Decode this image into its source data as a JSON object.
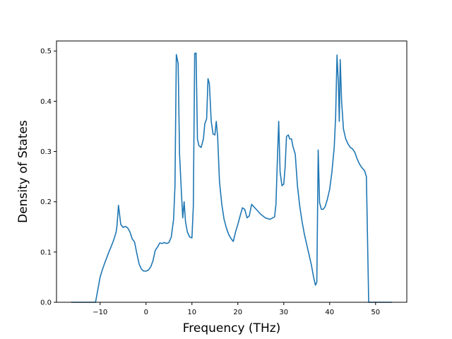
{
  "chart_data": {
    "type": "line",
    "title": "",
    "xlabel": "Frequency (THz)",
    "ylabel": "Density of States",
    "xlim": [
      -19.5,
      56.8
    ],
    "ylim": [
      0,
      0.52
    ],
    "xticks": [
      -10,
      0,
      10,
      20,
      30,
      40,
      50
    ],
    "xtick_labels": [
      "−10",
      "0",
      "10",
      "20",
      "30",
      "40",
      "50"
    ],
    "yticks": [
      0.0,
      0.1,
      0.2,
      0.3,
      0.4,
      0.5
    ],
    "ytick_labels": [
      "0.0",
      "0.1",
      "0.2",
      "0.3",
      "0.4",
      "0.5"
    ],
    "grid": false,
    "legend": "none",
    "color": "#1f77b4",
    "series": [
      {
        "x": [
          -16.3,
          -11.0,
          -10.5,
          -10.0,
          -9.5,
          -9.0,
          -8.5,
          -8.0,
          -7.5,
          -7.0,
          -6.5,
          -6.3,
          -6.0,
          -5.5,
          -5.0,
          -4.5,
          -4.0,
          -3.5,
          -3.0,
          -2.5,
          -2.0,
          -1.5,
          -1.0,
          -0.5,
          0.0,
          0.5,
          1.0,
          1.5,
          2.0,
          2.5,
          3.0,
          3.5,
          4.0,
          4.5,
          5.0,
          5.5,
          6.0,
          6.3,
          6.6,
          7.0,
          7.3,
          7.7,
          8.0,
          8.3,
          8.6,
          9.0,
          9.5,
          10.0,
          10.3,
          10.6,
          10.9,
          11.2,
          11.5,
          12.0,
          12.5,
          12.8,
          13.2,
          13.5,
          13.8,
          14.2,
          14.6,
          15.0,
          15.3,
          15.6,
          16.0,
          16.5,
          17.0,
          17.5,
          18.0,
          18.5,
          19.0,
          19.5,
          20.0,
          20.5,
          21.0,
          21.5,
          22.0,
          22.5,
          23.0,
          23.5,
          24.0,
          25.0,
          26.0,
          27.0,
          28.0,
          28.3,
          28.6,
          28.9,
          29.2,
          29.6,
          30.0,
          30.3,
          30.6,
          31.0,
          31.3,
          31.7,
          32.0,
          32.5,
          33.0,
          33.5,
          34.0,
          34.5,
          35.0,
          35.5,
          36.0,
          36.5,
          36.9,
          37.2,
          37.5,
          37.8,
          38.2,
          38.6,
          39.0,
          39.5,
          40.0,
          40.5,
          41.0,
          41.3,
          41.6,
          41.9,
          42.1,
          42.3,
          42.6,
          43.0,
          43.5,
          44.0,
          44.5,
          45.0,
          45.5,
          46.0,
          46.5,
          47.0,
          47.3,
          47.6,
          48.0,
          48.5,
          53.6
        ],
        "y": [
          0.0,
          0.0,
          0.025,
          0.05,
          0.065,
          0.078,
          0.09,
          0.102,
          0.113,
          0.125,
          0.14,
          0.155,
          0.193,
          0.155,
          0.149,
          0.151,
          0.148,
          0.14,
          0.126,
          0.12,
          0.097,
          0.076,
          0.066,
          0.062,
          0.062,
          0.064,
          0.07,
          0.082,
          0.103,
          0.11,
          0.118,
          0.117,
          0.119,
          0.117,
          0.119,
          0.13,
          0.165,
          0.23,
          0.493,
          0.475,
          0.295,
          0.22,
          0.168,
          0.2,
          0.16,
          0.14,
          0.13,
          0.128,
          0.19,
          0.495,
          0.496,
          0.325,
          0.312,
          0.308,
          0.325,
          0.355,
          0.365,
          0.445,
          0.435,
          0.36,
          0.335,
          0.333,
          0.36,
          0.33,
          0.24,
          0.195,
          0.165,
          0.148,
          0.135,
          0.127,
          0.121,
          0.14,
          0.155,
          0.172,
          0.188,
          0.185,
          0.168,
          0.172,
          0.195,
          0.19,
          0.185,
          0.175,
          0.168,
          0.165,
          0.17,
          0.195,
          0.28,
          0.36,
          0.26,
          0.232,
          0.235,
          0.27,
          0.33,
          0.333,
          0.325,
          0.325,
          0.31,
          0.295,
          0.23,
          0.19,
          0.16,
          0.135,
          0.115,
          0.095,
          0.075,
          0.05,
          0.034,
          0.04,
          0.303,
          0.198,
          0.185,
          0.185,
          0.19,
          0.205,
          0.225,
          0.26,
          0.31,
          0.37,
          0.492,
          0.435,
          0.36,
          0.483,
          0.4,
          0.345,
          0.325,
          0.315,
          0.308,
          0.305,
          0.298,
          0.285,
          0.275,
          0.268,
          0.265,
          0.262,
          0.25,
          0.0,
          0.0
        ]
      }
    ]
  }
}
